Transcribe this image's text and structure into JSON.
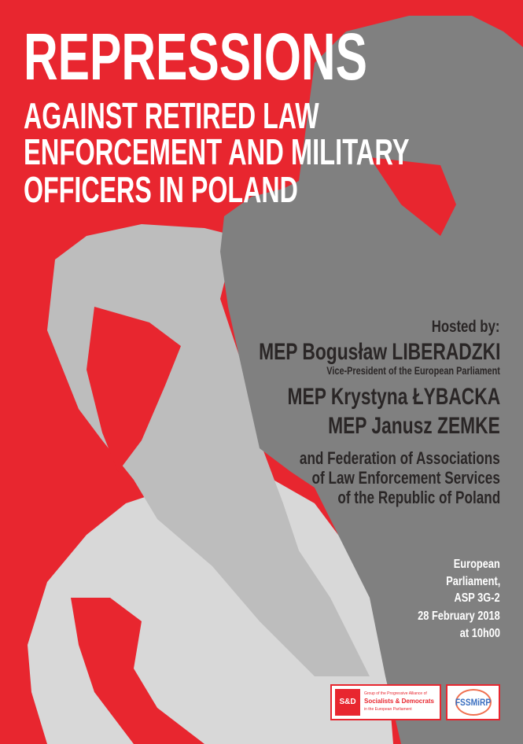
{
  "title": {
    "line1": "REPRESSIONS",
    "line2": "AGAINST RETIRED LAW",
    "line3": "ENFORCEMENT AND MILITARY",
    "line4": "OFFICERS IN POLAND"
  },
  "hosts": {
    "label": "Hosted by:",
    "host1": "MEP Bogusław LIBERADZKI",
    "host1_role": "Vice-President of the European Parliament",
    "host2": "MEP Krystyna ŁYBACKA",
    "host3": "MEP Janusz ZEMKE",
    "federation": [
      "and Federation of Associations",
      "of Law Enforcement Services",
      "of the Republic of Poland"
    ]
  },
  "event": {
    "venue": [
      "European",
      "Parliament,",
      "ASP 3G-2"
    ],
    "date": "28 February 2018",
    "time": "at 10h00"
  },
  "logos": {
    "sd_mark": "S&D",
    "sd_line1": "Group of the Progressive Alliance of",
    "sd_line2": "Socialists & Democrats",
    "sd_line3": "in the European Parliament",
    "fssm": "FSSMiRP"
  },
  "colors": {
    "red": "#e8262f",
    "dark_gray": "#808080",
    "mid_gray": "#bdbdbd",
    "light_gray": "#d9d9d9"
  }
}
